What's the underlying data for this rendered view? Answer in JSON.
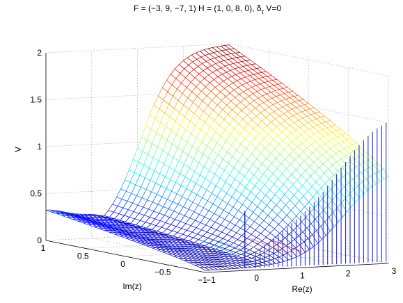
{
  "chart_data": {
    "type": "surface",
    "title_parts": {
      "main": "F = (−3, 9, −7, 1) H = (1, 0, 8, 0), δ",
      "subscript": "τ",
      "tail": " V=0"
    },
    "xlabel": "Re(z)",
    "ylabel": "Im(z)",
    "zlabel": "V",
    "xlim": [
      -1,
      3
    ],
    "ylim": [
      -1,
      1
    ],
    "zlim": [
      0,
      2
    ],
    "x_ticks": [
      "−1",
      "0",
      "1",
      "2",
      "3"
    ],
    "y_ticks": [
      "1",
      "0.5",
      "0",
      "−0.5",
      "−1"
    ],
    "z_ticks": [
      "0",
      "0.5",
      "1",
      "1.5",
      "2"
    ],
    "grid": true,
    "colormap": "jet",
    "samples": {
      "Re_z": [
        -1.0,
        -0.5,
        0.0,
        0.5,
        1.0,
        1.5,
        2.0,
        2.5,
        3.0
      ],
      "V_at_Im_1": [
        0.3,
        0.22,
        0.18,
        0.22,
        0.85,
        1.45,
        1.8,
        1.95,
        2.0
      ],
      "V_at_Im_0": [
        0.05,
        0.03,
        0.02,
        0.02,
        0.6,
        1.2,
        1.65,
        1.9,
        2.0
      ],
      "V_at_Im_minus1": [
        0.02,
        0.02,
        0.02,
        0.02,
        0.1,
        0.3,
        0.55,
        0.8,
        1.0
      ]
    }
  }
}
